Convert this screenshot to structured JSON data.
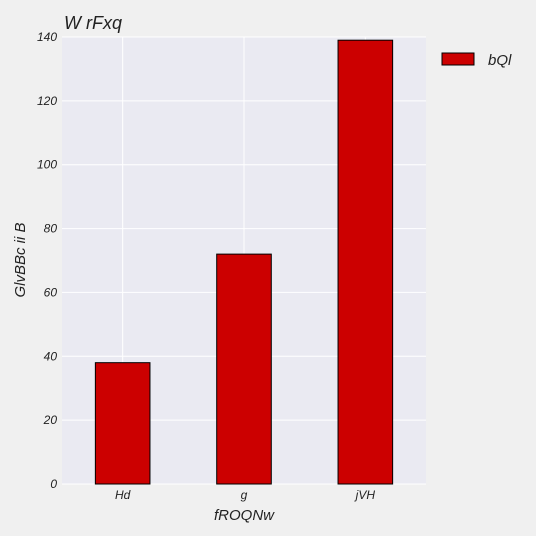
{
  "chart_data": {
    "type": "bar",
    "title": "W rFxq",
    "xlabel": "fROQNw",
    "ylabel": "GlvBBc ii B",
    "categories": [
      "Hd",
      "g",
      "jVH"
    ],
    "series": [
      {
        "name": "bQl",
        "values": [
          38,
          72,
          139
        ],
        "color": "#cc0000"
      }
    ],
    "ylim": [
      0,
      140
    ],
    "yticks": [
      0,
      20,
      40,
      60,
      80,
      100,
      120,
      140
    ],
    "grid": true,
    "legend": "top-right-outside"
  },
  "colors": {
    "plot_background": "#eaeaf2",
    "grid": "#ffffff",
    "figure_background": "#f0f0f0",
    "bar_edge": "#000000"
  }
}
